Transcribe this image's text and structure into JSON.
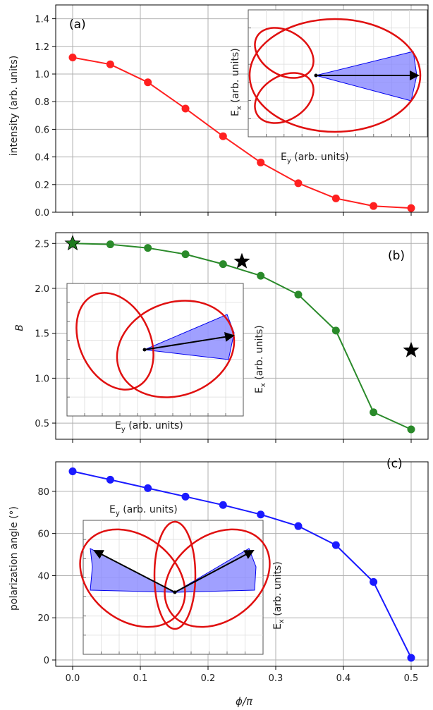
{
  "chart_data": [
    {
      "type": "line",
      "panel_label": "(a)",
      "ylabel": "intensity (arb. units)",
      "xlabel": "",
      "x": [
        0.0,
        0.0556,
        0.1111,
        0.1667,
        0.2222,
        0.2778,
        0.3333,
        0.3889,
        0.4444,
        0.5
      ],
      "series": [
        {
          "color": "#ff2020",
          "values": [
            1.12,
            1.07,
            0.94,
            0.75,
            0.55,
            0.36,
            0.21,
            0.1,
            0.045,
            0.03
          ]
        }
      ],
      "xlim": [
        -0.025,
        0.525
      ],
      "ylim": [
        0,
        1.5
      ],
      "yticks": [
        "0.0",
        "0.2",
        "0.4",
        "0.6",
        "0.8",
        "1.0",
        "1.2",
        "1.4"
      ],
      "grid": true,
      "inset": {
        "xlabel": "E",
        "xlabel_sub": "y",
        "xlabel_rest": " (arb. units)",
        "ylabel": "E",
        "ylabel_sub": "x",
        "ylabel_rest": " (arb. units)"
      }
    },
    {
      "type": "line",
      "panel_label": "(b)",
      "ylabel": "B",
      "xlabel": "",
      "x": [
        0.0,
        0.0556,
        0.1111,
        0.1667,
        0.2222,
        0.2778,
        0.3333,
        0.3889,
        0.4444,
        0.5
      ],
      "series": [
        {
          "color": "#2a8a2a",
          "values": [
            2.5,
            2.49,
            2.45,
            2.38,
            2.27,
            2.14,
            1.93,
            1.53,
            0.62,
            0.43
          ]
        }
      ],
      "stars": {
        "x": [
          0.0,
          0.25,
          0.5
        ],
        "y": [
          2.5,
          2.3,
          1.31
        ],
        "colors": [
          "#1f7a1f",
          "#000000",
          "#000000"
        ]
      },
      "xlim": [
        -0.025,
        0.525
      ],
      "ylim": [
        0.32,
        2.62
      ],
      "yticks": [
        "0.5",
        "1.0",
        "1.5",
        "2.0",
        "2.5"
      ],
      "grid": true,
      "inset": {
        "xlabel": "E",
        "xlabel_sub": "y",
        "xlabel_rest": " (arb. units)",
        "ylabel": "E",
        "ylabel_sub": "x",
        "ylabel_rest": " (arb. units)"
      }
    },
    {
      "type": "line",
      "panel_label": "(c)",
      "ylabel": "polarization angle (°)",
      "xlabel": "ϕ/π",
      "x": [
        0.0,
        0.0556,
        0.1111,
        0.1667,
        0.2222,
        0.2778,
        0.3333,
        0.3889,
        0.4444,
        0.5
      ],
      "series": [
        {
          "color": "#1a1aff",
          "values": [
            89.5,
            85.5,
            81.5,
            77.5,
            73.5,
            69,
            63.5,
            54.5,
            37,
            1
          ]
        }
      ],
      "xlim": [
        -0.025,
        0.525
      ],
      "ylim": [
        -3,
        94
      ],
      "yticks": [
        "0",
        "20",
        "40",
        "60",
        "80"
      ],
      "xticks": [
        "0.0",
        "0.1",
        "0.2",
        "0.3",
        "0.4",
        "0.5"
      ],
      "grid": true,
      "inset": {
        "xlabel": "E",
        "xlabel_sub": "y",
        "xlabel_rest": " (arb. units)",
        "ylabel": "E",
        "ylabel_sub": "x",
        "ylabel_rest": " (arb. units)"
      }
    }
  ]
}
